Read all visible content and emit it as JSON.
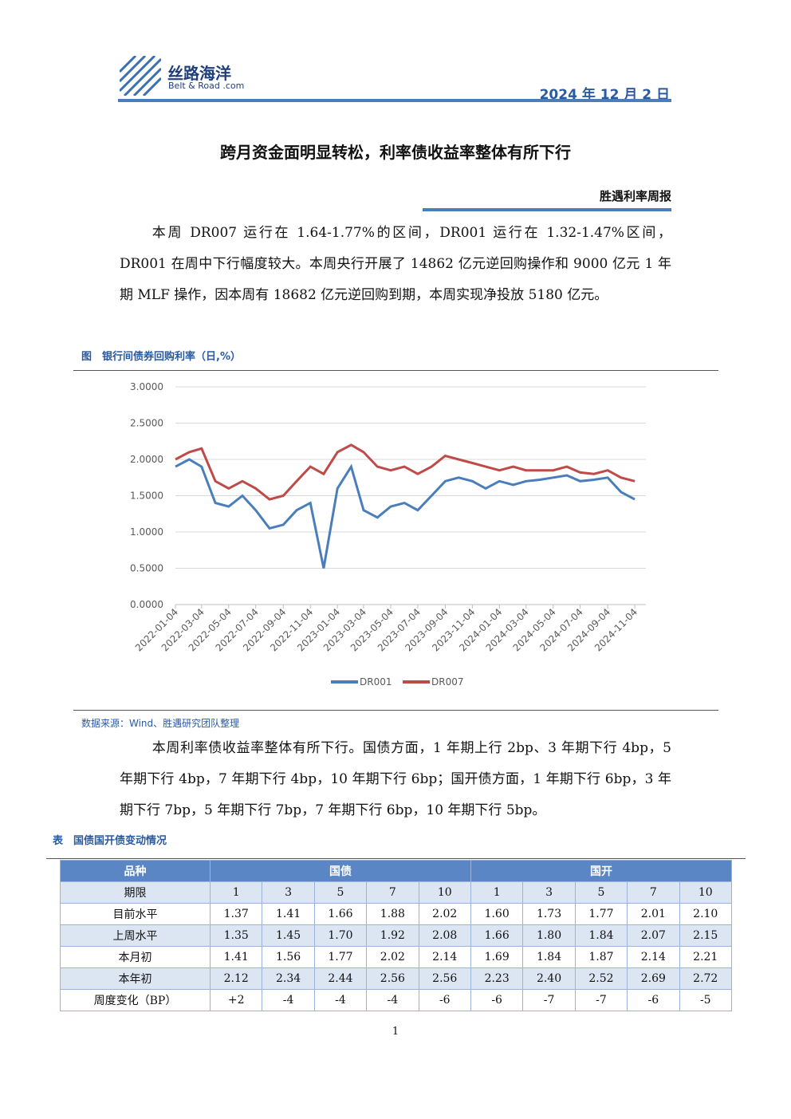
{
  "header": {
    "logo": "丝路海洋",
    "logo_sub": "Belt & Road .com",
    "date": "2024 年 12 月 2 日"
  },
  "title": "跨月资金面明显转松，利率债收益率整体有所下行",
  "column": "胜遇利率周报",
  "paragraph1": "本周 DR007 运行在 1.64-1.77%的区间，DR001 运行在 1.32-1.47%区间，DR001 在周中下行幅度较大。本周央行开展了 14862 亿元逆回购操作和 9000 亿元 1 年期 MLF 操作，因本周有 18682 亿元逆回购到期，本周实现净投放 5180 亿元。",
  "chart_data": {
    "type": "line",
    "title": "图　银行间债券回购利率（日,%）",
    "source": "数据来源：Wind、胜遇研究团队整理",
    "x": [
      "2022-01-04",
      "2022-02-04",
      "2022-03-04",
      "2022-04-04",
      "2022-05-04",
      "2022-06-04",
      "2022-07-04",
      "2022-08-04",
      "2022-09-04",
      "2022-10-04",
      "2022-11-04",
      "2022-12-04",
      "2023-01-04",
      "2023-02-04",
      "2023-03-04",
      "2023-04-04",
      "2023-05-04",
      "2023-06-04",
      "2023-07-04",
      "2023-08-04",
      "2023-09-04",
      "2023-10-04",
      "2023-11-04",
      "2023-12-04",
      "2024-01-04",
      "2024-02-04",
      "2024-03-04",
      "2024-04-04",
      "2024-05-04",
      "2024-06-04",
      "2024-07-04",
      "2024-08-04",
      "2024-09-04",
      "2024-10-04",
      "2024-11-04"
    ],
    "series": [
      {
        "name": "DR001",
        "color": "#4a7ebb",
        "values": [
          1.9,
          2.0,
          1.9,
          1.4,
          1.35,
          1.5,
          1.3,
          1.05,
          1.1,
          1.3,
          1.4,
          0.5,
          1.6,
          1.9,
          1.3,
          1.2,
          1.35,
          1.4,
          1.3,
          1.5,
          1.7,
          1.75,
          1.7,
          1.6,
          1.7,
          1.65,
          1.7,
          1.72,
          1.75,
          1.78,
          1.7,
          1.72,
          1.75,
          1.55,
          1.45
        ]
      },
      {
        "name": "DR007",
        "color": "#be4b48",
        "values": [
          2.0,
          2.1,
          2.15,
          1.7,
          1.6,
          1.7,
          1.6,
          1.45,
          1.5,
          1.7,
          1.9,
          1.8,
          2.1,
          2.2,
          2.1,
          1.9,
          1.85,
          1.9,
          1.8,
          1.9,
          2.05,
          2.0,
          1.95,
          1.9,
          1.85,
          1.9,
          1.85,
          1.85,
          1.85,
          1.9,
          1.82,
          1.8,
          1.85,
          1.75,
          1.7
        ]
      }
    ],
    "xlim": [
      "2022-01-04",
      "2024-11-29"
    ],
    "xticks": [
      "2022-01-04",
      "2022-03-04",
      "2022-05-04",
      "2022-07-04",
      "2022-09-04",
      "2022-11-04",
      "2023-01-04",
      "2023-03-04",
      "2023-05-04",
      "2023-07-04",
      "2023-09-04",
      "2023-11-04",
      "2024-01-04",
      "2024-03-04",
      "2024-05-04",
      "2024-07-04",
      "2024-09-04",
      "2024-11-04"
    ],
    "ylim": [
      0,
      3
    ],
    "yticks": [
      {
        "value": 0,
        "label": "0.0000"
      },
      {
        "value": 0.5,
        "label": "0.5000"
      },
      {
        "value": 1,
        "label": "1.0000"
      },
      {
        "value": 1.5,
        "label": "1.5000"
      },
      {
        "value": 2,
        "label": "2.0000"
      },
      {
        "value": 2.5,
        "label": "2.5000"
      },
      {
        "value": 3,
        "label": "3.0000"
      }
    ],
    "legend": "bottom"
  },
  "paragraph2": "本周利率债收益率整体有所下行。国债方面，1 年期上行 2bp、3 年期下行 4bp，5 年期下行 4bp，7 年期下行 4bp，10 年期下行 6bp；国开债方面，1 年期下行 6bp，3 年期下行 7bp，5 年期下行 7bp，7 年期下行 6bp，10 年期下行 5bp。",
  "table": {
    "caption": "表　国债国开债变动情况",
    "groups": [
      "品种",
      "国债",
      "国开"
    ],
    "columns": [
      "期限",
      "1",
      "3",
      "5",
      "7",
      "10",
      "1",
      "3",
      "5",
      "7",
      "10"
    ],
    "rows": [
      [
        "目前水平",
        "1.37",
        "1.41",
        "1.66",
        "1.88",
        "2.02",
        "1.60",
        "1.73",
        "1.77",
        "2.01",
        "2.10"
      ],
      [
        "上周水平",
        "1.35",
        "1.45",
        "1.70",
        "1.92",
        "2.08",
        "1.66",
        "1.80",
        "1.84",
        "2.07",
        "2.15"
      ],
      [
        "本月初",
        "1.41",
        "1.56",
        "1.77",
        "2.02",
        "2.14",
        "1.69",
        "1.84",
        "1.87",
        "2.14",
        "2.21"
      ],
      [
        "本年初",
        "2.12",
        "2.34",
        "2.44",
        "2.56",
        "2.56",
        "2.23",
        "2.40",
        "2.52",
        "2.69",
        "2.72"
      ],
      [
        "周度变化（BP）",
        "+2",
        "-4",
        "-4",
        "-4",
        "-6",
        "-6",
        "-7",
        "-7",
        "-6",
        "-5"
      ]
    ]
  },
  "page_number": "1"
}
